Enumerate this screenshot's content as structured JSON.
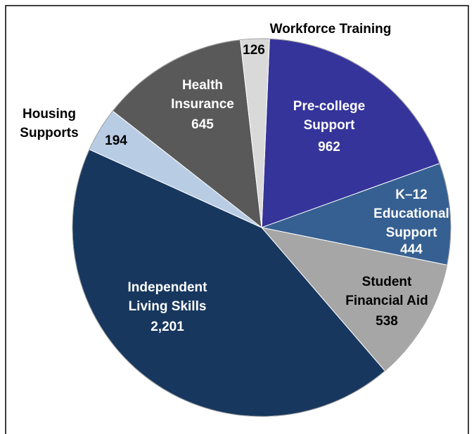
{
  "chart_data": {
    "type": "pie",
    "categories": [
      "Pre-college Support",
      "K–12 Educational Support",
      "Student Financial Aid",
      "Independent Living Skills",
      "Housing Supports",
      "Health Insurance",
      "Workforce Training"
    ],
    "values": [
      962,
      444,
      538,
      2201,
      194,
      645,
      126
    ],
    "value_labels": [
      "962",
      "444",
      "538",
      "2,201",
      "194",
      "645",
      "126"
    ],
    "colors": [
      "#35349a",
      "#366092",
      "#a6a6a6",
      "#17375e",
      "#b8cce4",
      "#595959",
      "#d9d9d9"
    ]
  }
}
